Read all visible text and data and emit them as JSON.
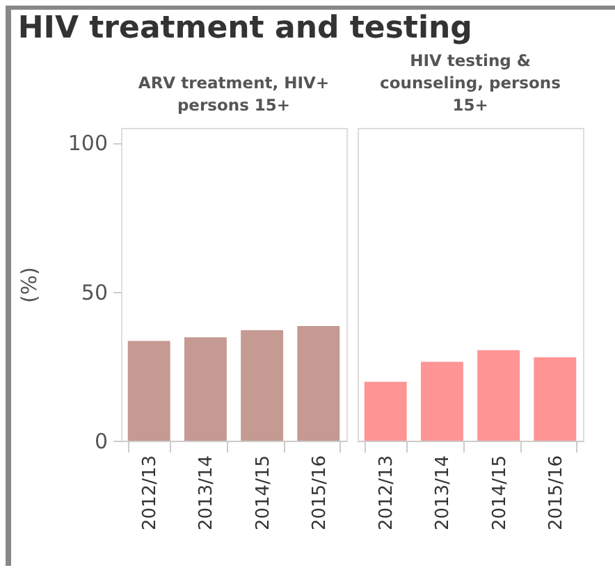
{
  "chart_data": [
    {
      "type": "bar",
      "title": "HIV treatment and testing",
      "subtitle": "ARV treatment, HIV+ persons 15+",
      "ylabel": "(%)",
      "categories": [
        "2012/13",
        "2013/14",
        "2014/15",
        "2015/16"
      ],
      "values": [
        33.5,
        34.7,
        37.1,
        38.5
      ],
      "color": "#c49a92",
      "ylim": [
        0,
        105
      ],
      "yticks": [
        0,
        50,
        100
      ],
      "grid": false
    },
    {
      "type": "bar",
      "subtitle": "HIV testing & counseling, persons 15+",
      "categories": [
        "2012/13",
        "2013/14",
        "2014/15",
        "2015/16"
      ],
      "values": [
        19.8,
        26.5,
        30.4,
        28.0
      ],
      "color": "#ff9494",
      "ylim": [
        0,
        105
      ],
      "yticks": [
        0,
        50,
        100
      ],
      "grid": false,
      "tick_labels": "x"
    }
  ]
}
